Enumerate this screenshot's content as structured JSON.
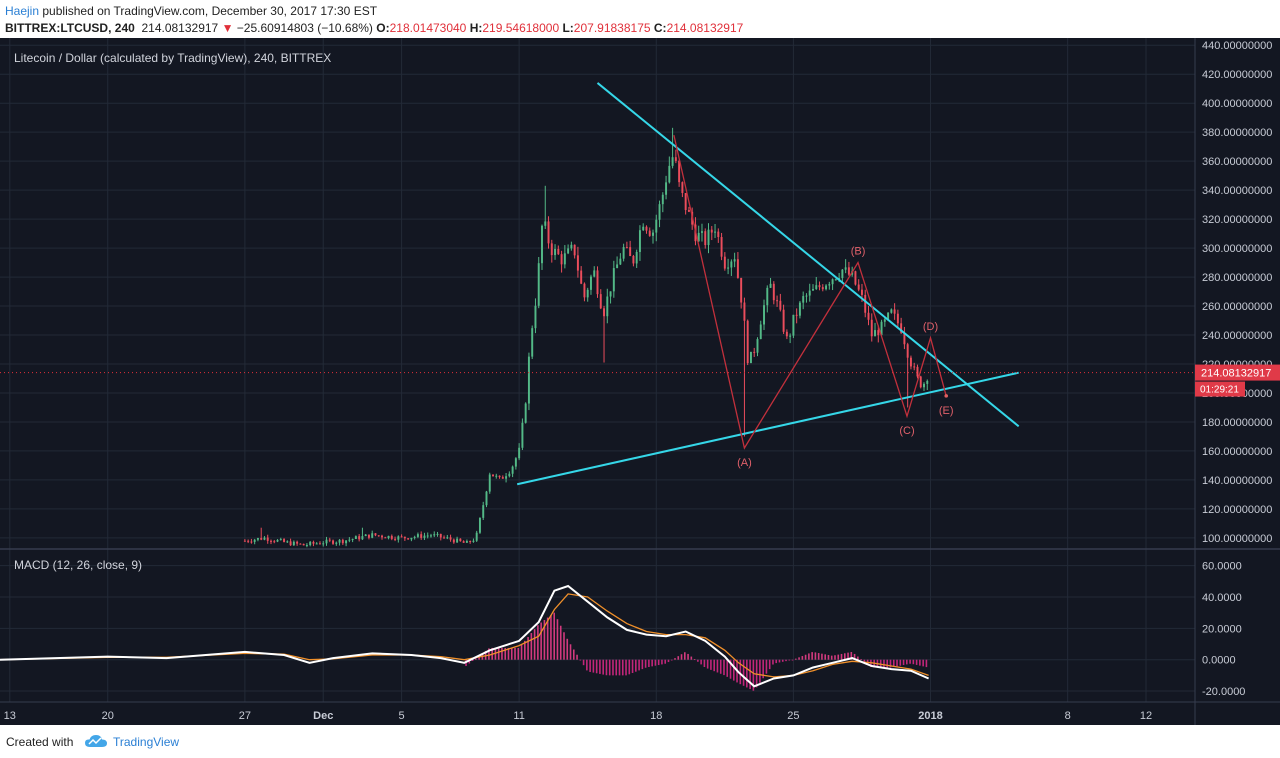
{
  "header": {
    "author": "Haejin",
    "published_text": "published on TradingView.com, December 30, 2017 17:30 EST",
    "symbol_info": "BITTREX:LTCUSD, 240",
    "last_price": "214.08132917",
    "change_arrow": "▼",
    "change": "−25.60914803 (−10.68%)",
    "o_label": "O:",
    "o_value": "218.01473040",
    "h_label": "H:",
    "h_value": "219.54618000",
    "l_label": "L:",
    "l_value": "207.91838175",
    "c_label": "C:",
    "c_value": "214.08132917"
  },
  "footer": {
    "created_with": "Created with",
    "brand": "TradingView"
  },
  "chart_data": {
    "type": "candlestick",
    "title": "Litecoin / Dollar (calculated by TradingView), 240, BITTREX",
    "y_ticks": [
      "100.00000000",
      "120.00000000",
      "140.00000000",
      "160.00000000",
      "180.00000000",
      "200.00000000",
      "220.00000000",
      "240.00000000",
      "260.00000000",
      "280.00000000",
      "300.00000000",
      "320.00000000",
      "340.00000000",
      "360.00000000",
      "380.00000000",
      "400.00000000",
      "420.00000000",
      "440.00000000"
    ],
    "ylim": [
      93,
      445
    ],
    "x_ticks": [
      {
        "day": -5,
        "label": "13"
      },
      {
        "day": 0,
        "label": "20"
      },
      {
        "day": 7,
        "label": "27"
      },
      {
        "day": 11,
        "label": "Dec"
      },
      {
        "day": 15,
        "label": "5"
      },
      {
        "day": 21,
        "label": "11"
      },
      {
        "day": 28,
        "label": "18"
      },
      {
        "day": 35,
        "label": "25"
      },
      {
        "day": 42,
        "label": "2018"
      },
      {
        "day": 49,
        "label": "8"
      },
      {
        "day": 53,
        "label": "12"
      }
    ],
    "xlim": [
      -5.5,
      55.5
    ],
    "price_tag": "214.08132917",
    "countdown": "01:29:21",
    "current_price": 214.08,
    "price_path": [
      {
        "d": 7.0,
        "p": 98
      },
      {
        "d": 8.0,
        "p": 100
      },
      {
        "d": 9.0,
        "p": 97
      },
      {
        "d": 10.0,
        "p": 95
      },
      {
        "d": 11.0,
        "p": 97
      },
      {
        "d": 12.0,
        "p": 98
      },
      {
        "d": 13.5,
        "p": 102
      },
      {
        "d": 15.0,
        "p": 100
      },
      {
        "d": 16.5,
        "p": 102
      },
      {
        "d": 17.5,
        "p": 99
      },
      {
        "d": 18.3,
        "p": 96
      },
      {
        "d": 18.8,
        "p": 100
      },
      {
        "d": 19.2,
        "p": 125
      },
      {
        "d": 19.5,
        "p": 145
      },
      {
        "d": 20.0,
        "p": 140
      },
      {
        "d": 20.6,
        "p": 148
      },
      {
        "d": 21.0,
        "p": 160
      },
      {
        "d": 21.3,
        "p": 190
      },
      {
        "d": 21.6,
        "p": 240
      },
      {
        "d": 21.9,
        "p": 270
      },
      {
        "d": 22.2,
        "p": 320
      },
      {
        "d": 22.6,
        "p": 300
      },
      {
        "d": 23.2,
        "p": 292
      },
      {
        "d": 23.8,
        "p": 300
      },
      {
        "d": 24.3,
        "p": 265
      },
      {
        "d": 24.8,
        "p": 285
      },
      {
        "d": 25.3,
        "p": 255
      },
      {
        "d": 25.8,
        "p": 280
      },
      {
        "d": 26.3,
        "p": 300
      },
      {
        "d": 26.8,
        "p": 290
      },
      {
        "d": 27.3,
        "p": 320
      },
      {
        "d": 27.8,
        "p": 310
      },
      {
        "d": 28.3,
        "p": 335
      },
      {
        "d": 28.6,
        "p": 355
      },
      {
        "d": 28.9,
        "p": 365
      },
      {
        "d": 29.2,
        "p": 340
      },
      {
        "d": 29.6,
        "p": 325
      },
      {
        "d": 30.0,
        "p": 310
      },
      {
        "d": 30.5,
        "p": 305
      },
      {
        "d": 31.0,
        "p": 315
      },
      {
        "d": 31.5,
        "p": 290
      },
      {
        "d": 32.0,
        "p": 295
      },
      {
        "d": 32.4,
        "p": 260
      },
      {
        "d": 32.7,
        "p": 220
      },
      {
        "d": 33.0,
        "p": 230
      },
      {
        "d": 33.4,
        "p": 255
      },
      {
        "d": 33.8,
        "p": 275
      },
      {
        "d": 34.2,
        "p": 260
      },
      {
        "d": 34.7,
        "p": 235
      },
      {
        "d": 35.0,
        "p": 250
      },
      {
        "d": 35.5,
        "p": 265
      },
      {
        "d": 36.0,
        "p": 270
      },
      {
        "d": 36.5,
        "p": 275
      },
      {
        "d": 37.0,
        "p": 280
      },
      {
        "d": 37.5,
        "p": 285
      },
      {
        "d": 38.0,
        "p": 280
      },
      {
        "d": 38.5,
        "p": 265
      },
      {
        "d": 39.0,
        "p": 240
      },
      {
        "d": 39.5,
        "p": 245
      },
      {
        "d": 40.0,
        "p": 255
      },
      {
        "d": 40.5,
        "p": 245
      },
      {
        "d": 40.9,
        "p": 225
      },
      {
        "d": 41.3,
        "p": 210
      },
      {
        "d": 41.6,
        "p": 205
      },
      {
        "d": 41.9,
        "p": 214
      }
    ],
    "wick_highs": [
      {
        "d": 7.8,
        "p": 107
      },
      {
        "d": 13.0,
        "p": 107
      },
      {
        "d": 22.3,
        "p": 343
      },
      {
        "d": 28.8,
        "p": 383
      },
      {
        "d": 32.4,
        "p": 275
      }
    ],
    "wick_lows": [
      {
        "d": 25.3,
        "p": 221
      },
      {
        "d": 32.5,
        "p": 170
      },
      {
        "d": 40.9,
        "p": 190
      }
    ],
    "trendlines": [
      {
        "name": "upper",
        "from": {
          "d": 25.0,
          "p": 414
        },
        "to": {
          "d": 46.5,
          "p": 177
        }
      },
      {
        "name": "lower",
        "from": {
          "d": 20.9,
          "p": 137
        },
        "to": {
          "d": 46.5,
          "p": 214
        }
      }
    ],
    "wave_path": [
      {
        "d": 28.9,
        "p": 378
      },
      {
        "d": 32.5,
        "p": 162
      },
      {
        "d": 38.3,
        "p": 290
      },
      {
        "d": 40.8,
        "p": 184
      },
      {
        "d": 42.0,
        "p": 238
      },
      {
        "d": 42.8,
        "p": 198
      }
    ],
    "wave_labels": [
      {
        "text": "(A)",
        "d": 32.5,
        "p": 162
      },
      {
        "text": "(B)",
        "d": 38.3,
        "p": 290
      },
      {
        "text": "(C)",
        "d": 40.8,
        "p": 184
      },
      {
        "text": "(D)",
        "d": 42.0,
        "p": 238
      },
      {
        "text": "(E)",
        "d": 42.8,
        "p": 198
      }
    ],
    "macd": {
      "title": "MACD (12, 26, close, 9)",
      "y_ticks": [
        {
          "v": 60,
          "label": "60.0000"
        },
        {
          "v": 40,
          "label": "40.0000"
        },
        {
          "v": 20,
          "label": "20.0000"
        },
        {
          "v": 0,
          "label": "0.0000"
        },
        {
          "v": -20,
          "label": "-20.0000"
        }
      ],
      "ylim": [
        -27,
        70
      ],
      "macd_line": [
        {
          "d": -5.5,
          "v": 0
        },
        {
          "d": 0,
          "v": 2
        },
        {
          "d": 3,
          "v": 1
        },
        {
          "d": 7,
          "v": 5
        },
        {
          "d": 9,
          "v": 3
        },
        {
          "d": 10.3,
          "v": -2
        },
        {
          "d": 11.5,
          "v": 1
        },
        {
          "d": 13.5,
          "v": 4
        },
        {
          "d": 15.5,
          "v": 3
        },
        {
          "d": 17,
          "v": 1
        },
        {
          "d": 18.2,
          "v": -2
        },
        {
          "d": 19.5,
          "v": 6
        },
        {
          "d": 21,
          "v": 12
        },
        {
          "d": 22,
          "v": 24
        },
        {
          "d": 22.8,
          "v": 44
        },
        {
          "d": 23.5,
          "v": 47
        },
        {
          "d": 24.5,
          "v": 37
        },
        {
          "d": 25.5,
          "v": 27
        },
        {
          "d": 26.5,
          "v": 19
        },
        {
          "d": 27.5,
          "v": 16
        },
        {
          "d": 28.5,
          "v": 15
        },
        {
          "d": 29.5,
          "v": 18
        },
        {
          "d": 30.5,
          "v": 12
        },
        {
          "d": 31.5,
          "v": 2
        },
        {
          "d": 32.2,
          "v": -8
        },
        {
          "d": 33,
          "v": -17
        },
        {
          "d": 34,
          "v": -12
        },
        {
          "d": 35,
          "v": -10
        },
        {
          "d": 36,
          "v": -5
        },
        {
          "d": 37,
          "v": -2
        },
        {
          "d": 38,
          "v": 1
        },
        {
          "d": 39,
          "v": -4
        },
        {
          "d": 40,
          "v": -6
        },
        {
          "d": 41,
          "v": -7
        },
        {
          "d": 41.9,
          "v": -12
        }
      ],
      "signal_line": [
        {
          "d": -5.5,
          "v": 0
        },
        {
          "d": 0,
          "v": 1.5
        },
        {
          "d": 3,
          "v": 1.5
        },
        {
          "d": 7,
          "v": 4
        },
        {
          "d": 9,
          "v": 3.5
        },
        {
          "d": 10.3,
          "v": 0
        },
        {
          "d": 11.5,
          "v": 0.5
        },
        {
          "d": 13.5,
          "v": 3
        },
        {
          "d": 15.5,
          "v": 3
        },
        {
          "d": 17,
          "v": 2
        },
        {
          "d": 18.2,
          "v": 0
        },
        {
          "d": 19.5,
          "v": 3
        },
        {
          "d": 21,
          "v": 9
        },
        {
          "d": 22,
          "v": 15
        },
        {
          "d": 22.8,
          "v": 32
        },
        {
          "d": 23.5,
          "v": 42
        },
        {
          "d": 24.5,
          "v": 40
        },
        {
          "d": 25.5,
          "v": 31
        },
        {
          "d": 26.5,
          "v": 23
        },
        {
          "d": 27.5,
          "v": 18
        },
        {
          "d": 28.5,
          "v": 16
        },
        {
          "d": 29.5,
          "v": 16
        },
        {
          "d": 30.5,
          "v": 14
        },
        {
          "d": 31.5,
          "v": 6
        },
        {
          "d": 32.2,
          "v": -2
        },
        {
          "d": 33,
          "v": -9
        },
        {
          "d": 34,
          "v": -11
        },
        {
          "d": 35,
          "v": -10
        },
        {
          "d": 36,
          "v": -7
        },
        {
          "d": 37,
          "v": -3
        },
        {
          "d": 38,
          "v": -1
        },
        {
          "d": 39,
          "v": -2
        },
        {
          "d": 40,
          "v": -4
        },
        {
          "d": 41,
          "v": -6
        },
        {
          "d": 41.9,
          "v": -10
        }
      ]
    }
  }
}
